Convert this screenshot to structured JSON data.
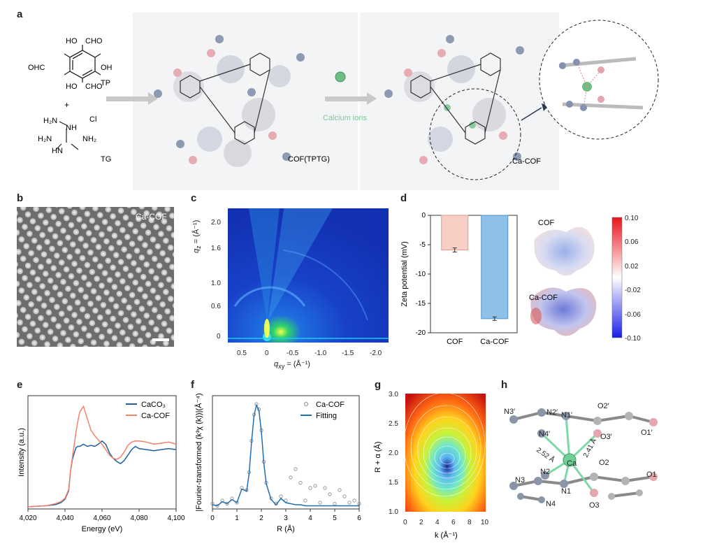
{
  "panels": {
    "a": "a",
    "b": "b",
    "c": "c",
    "d": "d",
    "e": "e",
    "f": "f",
    "g": "g",
    "h": "h"
  },
  "scheme": {
    "tp_label": "TP",
    "tg_label": "TG",
    "plus": "+",
    "cl_label": "Cl",
    "cof_label": "COF(TPTG)",
    "calcium_label": "Calcium ions",
    "cacof_label": "Ca-COF",
    "tp_groups": {
      "oh1": "HO",
      "oh2": "OH",
      "oh3": "HO",
      "cho1": "CHO",
      "cho2": "CHO",
      "cho3": "OHC"
    },
    "tg_groups": {
      "nh2a": "H₂N",
      "nh2b": "H₂N",
      "nh2c": "NH₂",
      "nh": "NH",
      "hn": "HN"
    }
  },
  "panel_b": {
    "label": "Ca-COF"
  },
  "panel_c": {
    "xlabel": "q",
    "xlabel_sub": "xy",
    "xlabel_unit": " = (Å⁻¹)",
    "ylabel": "q",
    "ylabel_sub": "z",
    "ylabel_unit": " = (Å⁻¹)",
    "xticks": [
      "0.5",
      "0",
      "-0.5",
      "-1.0",
      "-1.5",
      "-2.0"
    ],
    "yticks": [
      "2.0",
      "1.6",
      "1.0",
      "0.6",
      "0"
    ]
  },
  "chart_data": [
    {
      "panel": "d",
      "type": "bar",
      "categories": [
        "COF",
        "Ca-COF"
      ],
      "values": [
        -5.9,
        -17.6
      ],
      "errors": [
        0.35,
        0.3
      ],
      "colors": [
        "#f7cfc4",
        "#8fc1e8"
      ],
      "edge_colors": [
        "#e59a8a",
        "#4f95cf"
      ],
      "ylabel": "Zeta potential (mV)",
      "ylim": [
        -20,
        0
      ],
      "yticks": [
        "0",
        "-5",
        "-10",
        "-15",
        "-20"
      ]
    },
    {
      "panel": "d-colorbar",
      "type": "heatmap",
      "labels": [
        "COF",
        "Ca-COF"
      ],
      "colorbar_ticks": [
        "0.10",
        "0.06",
        "0.02",
        "-0.02",
        "-0.06",
        "-0.10"
      ],
      "range": [
        -0.1,
        0.1
      ]
    },
    {
      "panel": "e",
      "type": "line",
      "xlabel": "Energy (eV)",
      "ylabel": "Intensity (a.u.)",
      "xlim": [
        4020,
        4100
      ],
      "xticks": [
        "4,020",
        "4,040",
        "4,060",
        "4,080",
        "4,100"
      ],
      "series": [
        {
          "name": "CaCO₃",
          "color": "#1f5fa0",
          "x": [
            4020,
            4030,
            4035,
            4038,
            4040,
            4042,
            4043,
            4044,
            4045,
            4046,
            4047,
            4048,
            4050,
            4052,
            4054,
            4056,
            4058,
            4060,
            4062,
            4064,
            4066,
            4068,
            4070,
            4072,
            4074,
            4076,
            4078,
            4080,
            4084,
            4088,
            4092,
            4096,
            4100
          ],
          "y": [
            0.02,
            0.03,
            0.04,
            0.06,
            0.09,
            0.17,
            0.35,
            0.46,
            0.52,
            0.57,
            0.58,
            0.58,
            0.6,
            0.58,
            0.59,
            0.58,
            0.6,
            0.63,
            0.6,
            0.52,
            0.47,
            0.44,
            0.42,
            0.45,
            0.5,
            0.55,
            0.58,
            0.56,
            0.55,
            0.54,
            0.55,
            0.56,
            0.55
          ]
        },
        {
          "name": "Ca-COF",
          "color": "#f0836a",
          "x": [
            4020,
            4030,
            4035,
            4038,
            4040,
            4042,
            4043,
            4044,
            4045,
            4046,
            4047,
            4048,
            4050,
            4052,
            4054,
            4056,
            4058,
            4060,
            4062,
            4064,
            4066,
            4068,
            4070,
            4072,
            4074,
            4076,
            4078,
            4080,
            4084,
            4088,
            4092,
            4096,
            4100
          ],
          "y": [
            0.02,
            0.03,
            0.05,
            0.07,
            0.1,
            0.18,
            0.35,
            0.48,
            0.6,
            0.72,
            0.82,
            0.9,
            0.95,
            0.84,
            0.73,
            0.68,
            0.64,
            0.6,
            0.55,
            0.5,
            0.47,
            0.46,
            0.48,
            0.53,
            0.59,
            0.62,
            0.63,
            0.63,
            0.62,
            0.6,
            0.61,
            0.62,
            0.6
          ]
        }
      ]
    },
    {
      "panel": "f",
      "type": "line",
      "xlabel": "R (Å)",
      "ylabel": "|Fourier-transformed (k³χ (k))|(Å⁻⁴)",
      "xlim": [
        0,
        6
      ],
      "xticks": [
        "0",
        "1",
        "2",
        "3",
        "4",
        "5",
        "6"
      ],
      "series": [
        {
          "name": "Ca-COF",
          "color": "#888888",
          "marker": "circle",
          "x": [
            0,
            0.2,
            0.4,
            0.6,
            0.8,
            1.0,
            1.2,
            1.4,
            1.5,
            1.6,
            1.7,
            1.8,
            1.9,
            2.0,
            2.1,
            2.2,
            2.4,
            2.6,
            2.8,
            3.0,
            3.2,
            3.4,
            3.6,
            3.8,
            4.0,
            4.2,
            4.4,
            4.6,
            4.8,
            5.0,
            5.2,
            5.4,
            5.6,
            5.8,
            6.0
          ],
          "y": [
            0.05,
            0.03,
            0.08,
            0.05,
            0.1,
            0.06,
            0.2,
            0.18,
            0.35,
            0.65,
            0.9,
            1.0,
            0.95,
            0.75,
            0.45,
            0.25,
            0.1,
            0.05,
            0.12,
            0.08,
            0.3,
            0.38,
            0.25,
            0.08,
            0.2,
            0.22,
            0.06,
            0.2,
            0.14,
            0.05,
            0.18,
            0.12,
            0.06,
            0.08,
            0.05
          ]
        },
        {
          "name": "Fitting",
          "color": "#1f6fb2",
          "x": [
            0,
            0.2,
            0.4,
            0.6,
            0.8,
            1.0,
            1.2,
            1.4,
            1.5,
            1.6,
            1.7,
            1.8,
            1.9,
            2.0,
            2.1,
            2.2,
            2.4,
            2.6,
            2.8,
            3.0,
            3.2,
            3.4,
            3.6,
            3.8,
            4.0,
            4.4,
            4.8,
            5.2,
            5.6,
            6.0
          ],
          "y": [
            0.04,
            0.03,
            0.07,
            0.05,
            0.09,
            0.06,
            0.19,
            0.17,
            0.34,
            0.64,
            0.89,
            0.99,
            0.94,
            0.74,
            0.44,
            0.24,
            0.09,
            0.04,
            0.1,
            0.06,
            0.05,
            0.04,
            0.04,
            0.03,
            0.03,
            0.03,
            0.03,
            0.03,
            0.03,
            0.03
          ]
        }
      ]
    },
    {
      "panel": "g",
      "type": "heatmap",
      "xlabel": "k (Å⁻¹)",
      "ylabel": "R + α (Å)",
      "xlim": [
        0,
        10
      ],
      "ylim": [
        1.0,
        3.0
      ],
      "xticks": [
        "0",
        "2",
        "4",
        "6",
        "8",
        "10"
      ],
      "yticks": [
        "3.0",
        "2.5",
        "2.0",
        "1.5",
        "1.0"
      ],
      "peak": {
        "k": 5,
        "r": 1.9
      }
    }
  ],
  "panel_h": {
    "atoms": [
      "N3′",
      "N2′",
      "N1′",
      "O2′",
      "N4′",
      "O3′",
      "O1′",
      "Ca",
      "O2",
      "N2",
      "O1",
      "N3",
      "N1",
      "N4",
      "O3"
    ],
    "distances": [
      "2.52 Å",
      "2.41 Å"
    ]
  }
}
